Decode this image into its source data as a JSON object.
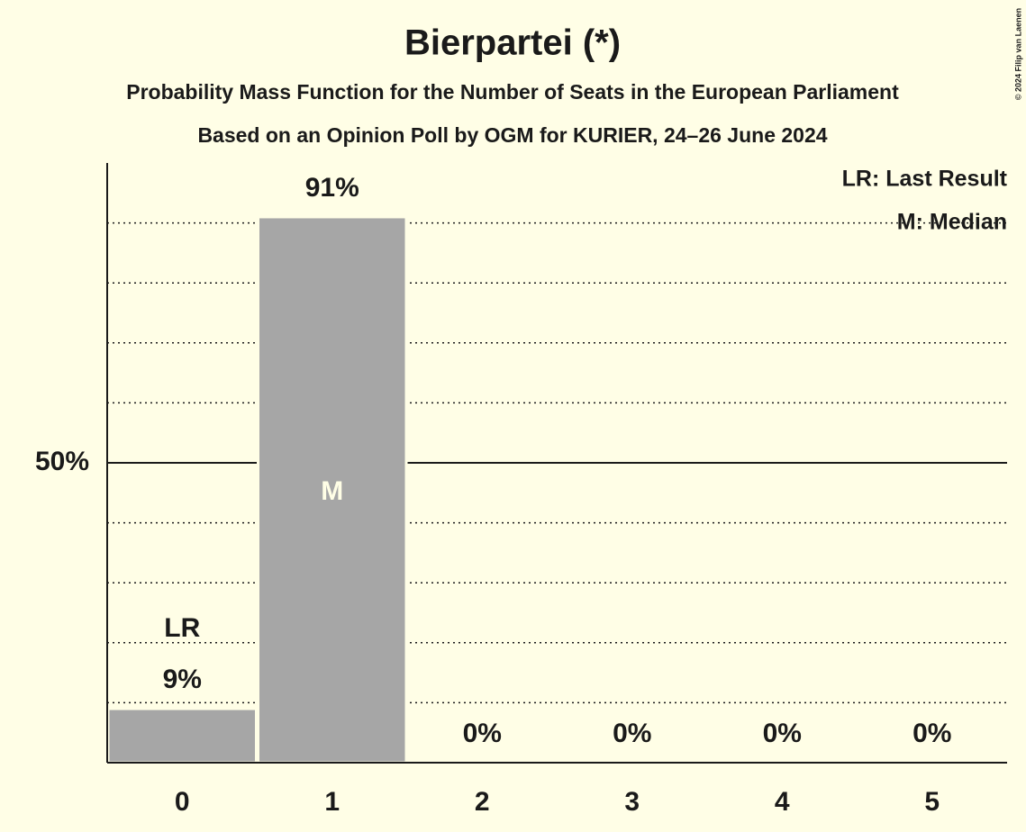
{
  "chart_data": {
    "type": "bar",
    "title": "Bierpartei (*)",
    "subtitle": "Probability Mass Function for the Number of Seats in the European Parliament",
    "subtitle2": "Based on an Opinion Poll by OGM for KURIER, 24–26 June 2024",
    "categories": [
      "0",
      "1",
      "2",
      "3",
      "4",
      "5"
    ],
    "values": [
      9,
      91,
      0,
      0,
      0,
      0
    ],
    "value_labels": [
      "9%",
      "91%",
      "0%",
      "0%",
      "0%",
      "0%"
    ],
    "color": "#a6a6a6",
    "ylim": [
      0,
      100
    ],
    "yticks": [
      {
        "value": 50,
        "label": "50%"
      }
    ],
    "minor_yticks": [
      10,
      20,
      30,
      40,
      60,
      70,
      80,
      90
    ],
    "grid": true,
    "annotations": [
      {
        "text": "LR",
        "category": 0
      },
      {
        "text": "M",
        "category": 1
      }
    ],
    "legend": [
      "LR: Last Result",
      "M: Median"
    ],
    "legend_position": "upper right",
    "copyright": "© 2024 Filip van Laenen"
  }
}
